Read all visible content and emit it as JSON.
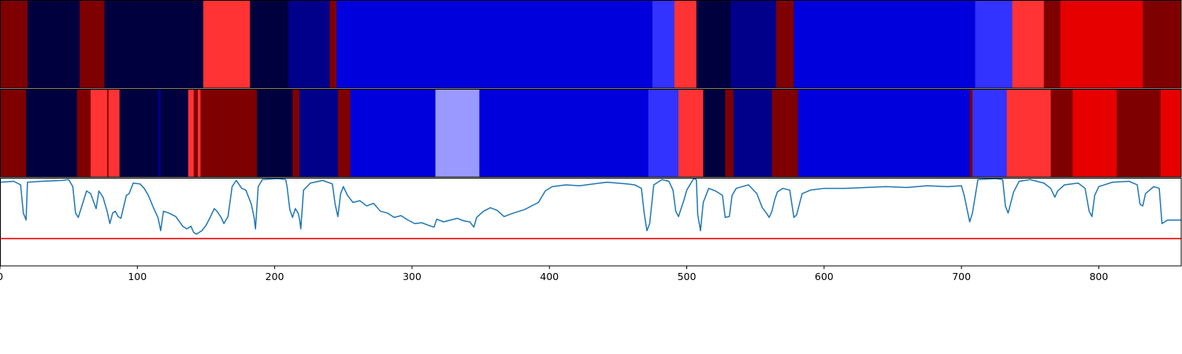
{
  "chart_data": [
    {
      "type": "heatmap",
      "panel": "top",
      "xlim": [
        0,
        860
      ],
      "segments": [
        {
          "start": 0,
          "end": 20,
          "color": "#7f0000"
        },
        {
          "start": 20,
          "end": 58,
          "color": "#00003f"
        },
        {
          "start": 58,
          "end": 76,
          "color": "#7f0000"
        },
        {
          "start": 76,
          "end": 148,
          "color": "#00003f"
        },
        {
          "start": 148,
          "end": 182,
          "color": "#ff3333"
        },
        {
          "start": 182,
          "end": 210,
          "color": "#00003f"
        },
        {
          "start": 210,
          "end": 240,
          "color": "#00008a"
        },
        {
          "start": 240,
          "end": 245,
          "color": "#7f0000"
        },
        {
          "start": 245,
          "end": 475,
          "color": "#0000dd"
        },
        {
          "start": 475,
          "end": 491,
          "color": "#3333ff"
        },
        {
          "start": 491,
          "end": 507,
          "color": "#ff3333"
        },
        {
          "start": 507,
          "end": 532,
          "color": "#00003f"
        },
        {
          "start": 532,
          "end": 565,
          "color": "#00008a"
        },
        {
          "start": 565,
          "end": 578,
          "color": "#7f0000"
        },
        {
          "start": 578,
          "end": 710,
          "color": "#0000dd"
        },
        {
          "start": 710,
          "end": 737,
          "color": "#3333ff"
        },
        {
          "start": 737,
          "end": 760,
          "color": "#ff3333"
        },
        {
          "start": 760,
          "end": 772,
          "color": "#7f0000"
        },
        {
          "start": 772,
          "end": 832,
          "color": "#e60000"
        },
        {
          "start": 832,
          "end": 860,
          "color": "#7f0000"
        }
      ]
    },
    {
      "type": "heatmap",
      "panel": "middle",
      "xlim": [
        0,
        860
      ],
      "segments": [
        {
          "start": 0,
          "end": 19,
          "color": "#7f0000"
        },
        {
          "start": 19,
          "end": 56,
          "color": "#00003f"
        },
        {
          "start": 56,
          "end": 66,
          "color": "#7f0000"
        },
        {
          "start": 66,
          "end": 78,
          "color": "#ff3333"
        },
        {
          "start": 78,
          "end": 79,
          "color": "#7f0000"
        },
        {
          "start": 79,
          "end": 87,
          "color": "#ff3333"
        },
        {
          "start": 87,
          "end": 115,
          "color": "#00003f"
        },
        {
          "start": 115,
          "end": 117,
          "color": "#00008a"
        },
        {
          "start": 117,
          "end": 137,
          "color": "#00003f"
        },
        {
          "start": 137,
          "end": 141,
          "color": "#ff3333"
        },
        {
          "start": 141,
          "end": 144,
          "color": "#7f0000"
        },
        {
          "start": 144,
          "end": 146,
          "color": "#ff3333"
        },
        {
          "start": 146,
          "end": 187,
          "color": "#7f0000"
        },
        {
          "start": 187,
          "end": 213,
          "color": "#00003f"
        },
        {
          "start": 213,
          "end": 218,
          "color": "#7f0000"
        },
        {
          "start": 218,
          "end": 246,
          "color": "#00008a"
        },
        {
          "start": 246,
          "end": 255,
          "color": "#7f0000"
        },
        {
          "start": 255,
          "end": 317,
          "color": "#0000dd"
        },
        {
          "start": 317,
          "end": 349,
          "color": "#9999ff"
        },
        {
          "start": 349,
          "end": 472,
          "color": "#0000dd"
        },
        {
          "start": 472,
          "end": 494,
          "color": "#3333ff"
        },
        {
          "start": 494,
          "end": 512,
          "color": "#ff3333"
        },
        {
          "start": 512,
          "end": 528,
          "color": "#00003f"
        },
        {
          "start": 528,
          "end": 534,
          "color": "#7f0000"
        },
        {
          "start": 534,
          "end": 562,
          "color": "#00008a"
        },
        {
          "start": 562,
          "end": 581,
          "color": "#7f0000"
        },
        {
          "start": 581,
          "end": 706,
          "color": "#0000dd"
        },
        {
          "start": 706,
          "end": 708,
          "color": "#7f0000"
        },
        {
          "start": 708,
          "end": 733,
          "color": "#3333ff"
        },
        {
          "start": 733,
          "end": 765,
          "color": "#ff3333"
        },
        {
          "start": 765,
          "end": 781,
          "color": "#7f0000"
        },
        {
          "start": 781,
          "end": 813,
          "color": "#e60000"
        },
        {
          "start": 813,
          "end": 845,
          "color": "#7f0000"
        },
        {
          "start": 845,
          "end": 860,
          "color": "#e60000"
        }
      ]
    },
    {
      "type": "line",
      "panel": "bottom",
      "xlim": [
        0,
        860
      ],
      "ylim": [
        0,
        1
      ],
      "line_color": "#1f77b4",
      "threshold": {
        "value": 0.31,
        "color": "#ee0000"
      },
      "x_ticks": [
        "0",
        "100",
        "200",
        "300",
        "400",
        "500",
        "600",
        "700",
        "800"
      ],
      "series": [
        {
          "points": [
            [
              0,
              0.95
            ],
            [
              10,
              0.96
            ],
            [
              15,
              0.92
            ],
            [
              17,
              0.6
            ],
            [
              19,
              0.52
            ],
            [
              20,
              0.95
            ],
            [
              30,
              0.96
            ],
            [
              45,
              0.97
            ],
            [
              50,
              0.98
            ],
            [
              53,
              0.9
            ],
            [
              55,
              0.6
            ],
            [
              57,
              0.55
            ],
            [
              60,
              0.7
            ],
            [
              63,
              0.85
            ],
            [
              66,
              0.82
            ],
            [
              70,
              0.65
            ],
            [
              72,
              0.85
            ],
            [
              75,
              0.78
            ],
            [
              78,
              0.62
            ],
            [
              80,
              0.48
            ],
            [
              82,
              0.6
            ],
            [
              84,
              0.62
            ],
            [
              86,
              0.56
            ],
            [
              88,
              0.54
            ],
            [
              92,
              0.8
            ],
            [
              94,
              0.82
            ],
            [
              97,
              0.94
            ],
            [
              102,
              0.93
            ],
            [
              105,
              0.88
            ],
            [
              108,
              0.8
            ],
            [
              112,
              0.65
            ],
            [
              115,
              0.55
            ],
            [
              117,
              0.4
            ],
            [
              119,
              0.62
            ],
            [
              123,
              0.6
            ],
            [
              128,
              0.56
            ],
            [
              133,
              0.45
            ],
            [
              136,
              0.42
            ],
            [
              139,
              0.45
            ],
            [
              141,
              0.38
            ],
            [
              143,
              0.36
            ],
            [
              147,
              0.4
            ],
            [
              150,
              0.46
            ],
            [
              153,
              0.55
            ],
            [
              156,
              0.65
            ],
            [
              158,
              0.62
            ],
            [
              161,
              0.55
            ],
            [
              163,
              0.48
            ],
            [
              166,
              0.56
            ],
            [
              169,
              0.9
            ],
            [
              172,
              0.97
            ],
            [
              176,
              0.88
            ],
            [
              179,
              0.86
            ],
            [
              183,
              0.7
            ],
            [
              185,
              0.55
            ],
            [
              186,
              0.42
            ],
            [
              188,
              0.9
            ],
            [
              191,
              0.98
            ],
            [
              202,
              0.99
            ],
            [
              208,
              0.98
            ],
            [
              209,
              0.9
            ],
            [
              211,
              0.64
            ],
            [
              213,
              0.55
            ],
            [
              215,
              0.65
            ],
            [
              217,
              0.6
            ],
            [
              218,
              0.54
            ],
            [
              219,
              0.42
            ],
            [
              221,
              0.86
            ],
            [
              226,
              0.94
            ],
            [
              235,
              0.97
            ],
            [
              242,
              0.93
            ],
            [
              244,
              0.7
            ],
            [
              246,
              0.56
            ],
            [
              248,
              0.82
            ],
            [
              250,
              0.9
            ],
            [
              253,
              0.8
            ],
            [
              257,
              0.72
            ],
            [
              262,
              0.74
            ],
            [
              267,
              0.68
            ],
            [
              272,
              0.71
            ],
            [
              277,
              0.62
            ],
            [
              282,
              0.6
            ],
            [
              287,
              0.55
            ],
            [
              292,
              0.57
            ],
            [
              297,
              0.52
            ],
            [
              302,
              0.48
            ],
            [
              307,
              0.49
            ],
            [
              312,
              0.46
            ],
            [
              316,
              0.44
            ],
            [
              318,
              0.53
            ],
            [
              323,
              0.5
            ],
            [
              328,
              0.52
            ],
            [
              333,
              0.54
            ],
            [
              338,
              0.51
            ],
            [
              342,
              0.5
            ],
            [
              345,
              0.44
            ],
            [
              347,
              0.55
            ],
            [
              352,
              0.62
            ],
            [
              357,
              0.66
            ],
            [
              362,
              0.63
            ],
            [
              367,
              0.56
            ],
            [
              372,
              0.59
            ],
            [
              382,
              0.64
            ],
            [
              392,
              0.72
            ],
            [
              397,
              0.85
            ],
            [
              402,
              0.9
            ],
            [
              412,
              0.92
            ],
            [
              422,
              0.91
            ],
            [
              442,
              0.95
            ],
            [
              457,
              0.93
            ],
            [
              462,
              0.92
            ],
            [
              467,
              0.88
            ],
            [
              469,
              0.6
            ],
            [
              471,
              0.4
            ],
            [
              473,
              0.48
            ],
            [
              476,
              0.92
            ],
            [
              482,
              0.98
            ],
            [
              487,
              0.96
            ],
            [
              490,
              0.86
            ],
            [
              492,
              0.62
            ],
            [
              494,
              0.56
            ],
            [
              498,
              0.75
            ],
            [
              500,
              0.86
            ],
            [
              505,
              0.99
            ],
            [
              507,
              0.98
            ],
            [
              508,
              0.58
            ],
            [
              510,
              0.4
            ],
            [
              512,
              0.72
            ],
            [
              516,
              0.88
            ],
            [
              521,
              0.85
            ],
            [
              526,
              0.8
            ],
            [
              528,
              0.55
            ],
            [
              531,
              0.56
            ],
            [
              533,
              0.8
            ],
            [
              536,
              0.88
            ],
            [
              545,
              0.92
            ],
            [
              551,
              0.82
            ],
            [
              555,
              0.66
            ],
            [
              558,
              0.6
            ],
            [
              560,
              0.55
            ],
            [
              562,
              0.62
            ],
            [
              564,
              0.75
            ],
            [
              566,
              0.84
            ],
            [
              570,
              0.88
            ],
            [
              575,
              0.86
            ],
            [
              578,
              0.55
            ],
            [
              580,
              0.58
            ],
            [
              584,
              0.82
            ],
            [
              590,
              0.86
            ],
            [
              600,
              0.88
            ],
            [
              615,
              0.88
            ],
            [
              630,
              0.89
            ],
            [
              645,
              0.9
            ],
            [
              660,
              0.89
            ],
            [
              675,
              0.91
            ],
            [
              690,
              0.9
            ],
            [
              700,
              0.91
            ],
            [
              702,
              0.8
            ],
            [
              704,
              0.65
            ],
            [
              706,
              0.5
            ],
            [
              708,
              0.6
            ],
            [
              712,
              0.98
            ],
            [
              725,
              0.99
            ],
            [
              730,
              0.98
            ],
            [
              732,
              0.68
            ],
            [
              734,
              0.6
            ],
            [
              738,
              0.84
            ],
            [
              742,
              0.96
            ],
            [
              750,
              0.98
            ],
            [
              760,
              0.94
            ],
            [
              765,
              0.88
            ],
            [
              768,
              0.78
            ],
            [
              770,
              0.85
            ],
            [
              775,
              0.92
            ],
            [
              785,
              0.94
            ],
            [
              790,
              0.88
            ],
            [
              793,
              0.62
            ],
            [
              795,
              0.56
            ],
            [
              797,
              0.8
            ],
            [
              800,
              0.9
            ],
            [
              810,
              0.95
            ],
            [
              822,
              0.96
            ],
            [
              828,
              0.92
            ],
            [
              830,
              0.7
            ],
            [
              832,
              0.68
            ],
            [
              834,
              0.82
            ],
            [
              840,
              0.9
            ],
            [
              844,
              0.88
            ],
            [
              846,
              0.48
            ],
            [
              850,
              0.52
            ],
            [
              860,
              0.52
            ]
          ]
        }
      ]
    }
  ]
}
